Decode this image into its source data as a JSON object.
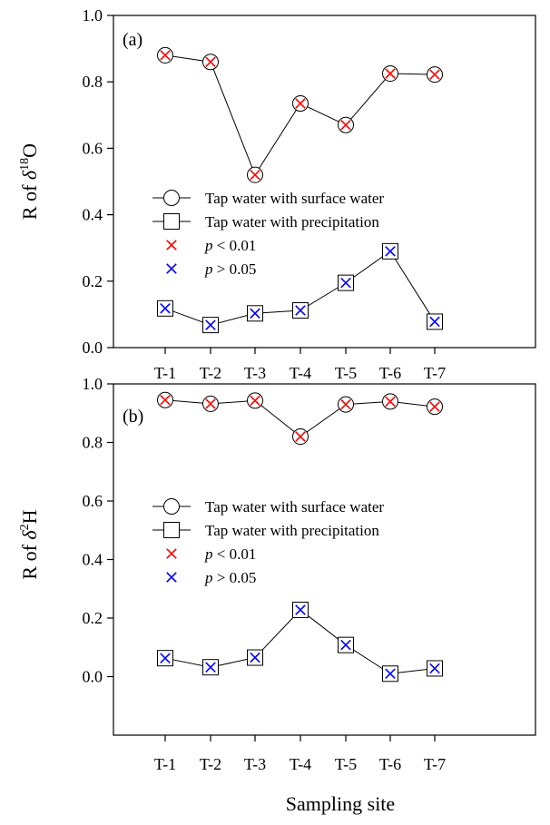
{
  "figure": {
    "xlabel": "Sampling site"
  },
  "chart_data": [
    {
      "type": "line",
      "panel_label": "(a)",
      "ylabel_prefix": "R of ",
      "ylabel_symbol": "δ",
      "ylabel_sup": "18",
      "ylabel_suffix": "O",
      "categories": [
        "T-1",
        "T-2",
        "T-3",
        "T-4",
        "T-5",
        "T-6",
        "T-7"
      ],
      "ylim": [
        0.0,
        1.0
      ],
      "yticks": [
        "0.0",
        "0.2",
        "0.4",
        "0.6",
        "0.8",
        "1.0"
      ],
      "series": [
        {
          "name": "Tap water with surface water",
          "marker": "circle",
          "values": [
            0.88,
            0.86,
            0.52,
            0.735,
            0.67,
            0.825,
            0.822
          ],
          "significance": [
            "p<0.01",
            "p<0.01",
            "p<0.01",
            "p<0.01",
            "p<0.01",
            "p<0.01",
            "p<0.01"
          ]
        },
        {
          "name": "Tap water with precipitation",
          "marker": "square",
          "values": [
            0.118,
            0.068,
            0.103,
            0.112,
            0.195,
            0.29,
            0.078
          ],
          "significance": [
            "p>0.05",
            "p>0.05",
            "p>0.05",
            "p>0.05",
            "p>0.05",
            "p>0.05",
            "p>0.05"
          ]
        }
      ],
      "significance_legend": [
        {
          "key": "p<0.01",
          "symbol": "×",
          "prefix": "p",
          "text": " < 0.01",
          "color": "#ff0000"
        },
        {
          "key": "p>0.05",
          "symbol": "×",
          "prefix": "p",
          "text": " > 0.05",
          "color": "#0000ff"
        }
      ],
      "legend_position": "center-left"
    },
    {
      "type": "line",
      "panel_label": "(b)",
      "ylabel_prefix": "R of ",
      "ylabel_symbol": "δ",
      "ylabel_sup": "2",
      "ylabel_suffix": "H",
      "categories": [
        "T-1",
        "T-2",
        "T-3",
        "T-4",
        "T-5",
        "T-6",
        "T-7"
      ],
      "ylim": [
        -0.2,
        1.0
      ],
      "yticks": [
        "0.0",
        "0.2",
        "0.4",
        "0.6",
        "0.8",
        "1.0"
      ],
      "series": [
        {
          "name": "Tap water with surface water",
          "marker": "circle",
          "values": [
            0.945,
            0.932,
            0.943,
            0.82,
            0.93,
            0.94,
            0.922
          ],
          "significance": [
            "p<0.01",
            "p<0.01",
            "p<0.01",
            "p<0.01",
            "p<0.01",
            "p<0.01",
            "p<0.01"
          ]
        },
        {
          "name": "Tap water with precipitation",
          "marker": "square",
          "values": [
            0.063,
            0.032,
            0.065,
            0.228,
            0.108,
            0.01,
            0.028
          ],
          "significance": [
            "p>0.05",
            "p>0.05",
            "p>0.05",
            "p>0.05",
            "p>0.05",
            "p>0.05",
            "p>0.05"
          ]
        }
      ],
      "significance_legend": [
        {
          "key": "p<0.01",
          "symbol": "×",
          "prefix": "p",
          "text": " < 0.01",
          "color": "#ff0000"
        },
        {
          "key": "p>0.05",
          "symbol": "×",
          "prefix": "p",
          "text": " > 0.05",
          "color": "#0000ff"
        }
      ],
      "legend_position": "center-left"
    }
  ]
}
